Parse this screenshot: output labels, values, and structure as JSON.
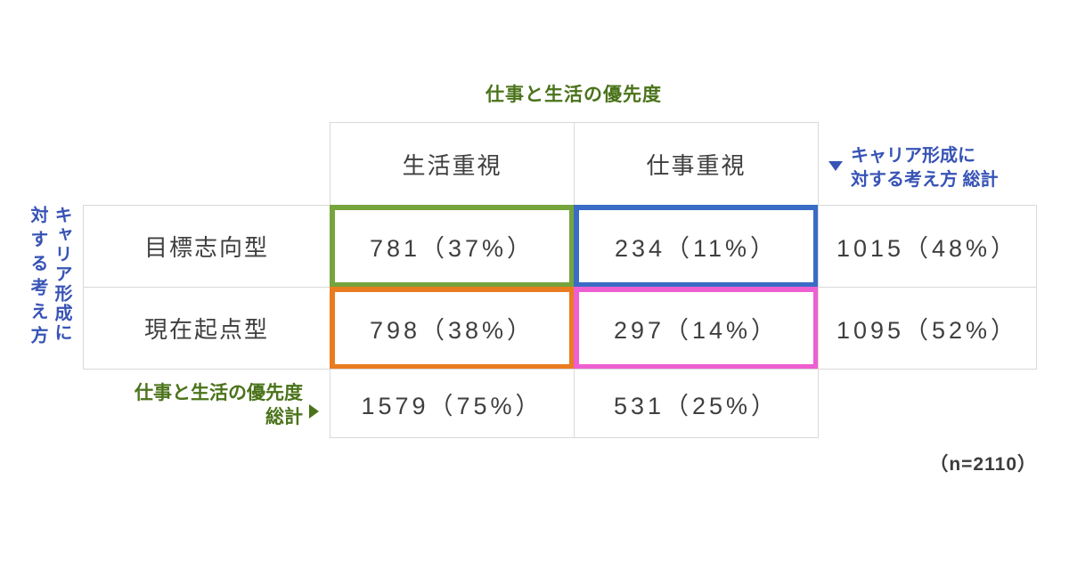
{
  "figure": {
    "column_axis_title": "仕事と生活の優先度",
    "row_axis_title_line1": "キャリア形成に",
    "row_axis_title_line2": "対する考え方",
    "row_total_label_line1": "キャリア形成に",
    "row_total_label_line2": "対する考え方 総計",
    "col_total_label_line1": "仕事と生活の優先度",
    "col_total_label_line2": "総計",
    "sample_size": "（n=2110）"
  },
  "column_headers": [
    "生活重視",
    "仕事重視"
  ],
  "row_headers": [
    "目標志向型",
    "現在起点型"
  ],
  "cells": {
    "r1c1": "781（37%）",
    "r1c2": "234（11%）",
    "r1_total": "1015（48%）",
    "r2c1": "798（38%）",
    "r2c2": "297（14%）",
    "r2_total": "1095（52%）",
    "total_c1": "1579（75%）",
    "total_c2": "531（25%）"
  },
  "colors": {
    "green_label": "#4a731a",
    "blue_label": "#3753b5",
    "cell_border_green": "#76a43d",
    "cell_border_blue": "#3a6cc5",
    "cell_border_orange": "#e97c20",
    "cell_border_pink": "#ee5fd1",
    "text_dark": "#3f3f3f",
    "grid_line": "#d9d9d9"
  },
  "chart_data": {
    "type": "table",
    "column_axis_title": "仕事と生活の優先度",
    "row_axis_title": "キャリア形成に対する考え方",
    "columns": [
      "生活重視",
      "仕事重視"
    ],
    "rows": [
      "目標志向型",
      "現在起点型"
    ],
    "values": [
      [
        781,
        234
      ],
      [
        798,
        297
      ]
    ],
    "percentages": [
      [
        37,
        11
      ],
      [
        38,
        14
      ]
    ],
    "row_totals": [
      {
        "label": "キャリア形成に対する考え方 総計",
        "row": "目標志向型",
        "value": 1015,
        "pct": 48
      },
      {
        "label": "キャリア形成に対する考え方 総計",
        "row": "現在起点型",
        "value": 1095,
        "pct": 52
      }
    ],
    "column_totals": [
      {
        "label": "仕事と生活の優先度 総計",
        "column": "生活重視",
        "value": 1579,
        "pct": 75
      },
      {
        "label": "仕事と生活の優先度 総計",
        "column": "仕事重視",
        "value": 531,
        "pct": 25
      }
    ],
    "n": 2110
  }
}
